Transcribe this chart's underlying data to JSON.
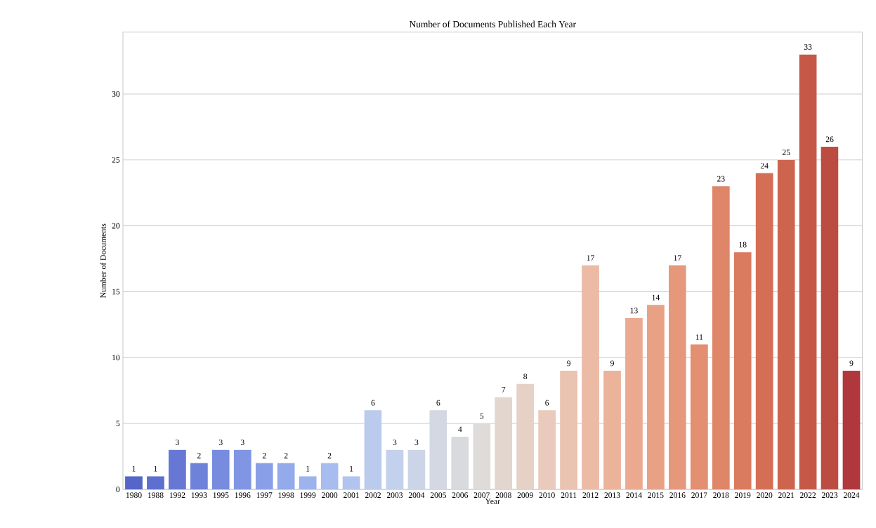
{
  "chart_data": {
    "type": "bar",
    "title": "Number of Documents Published Each Year",
    "xlabel": "Year",
    "ylabel": "Number of Documents",
    "categories": [
      "1980",
      "1988",
      "1992",
      "1993",
      "1995",
      "1996",
      "1997",
      "1998",
      "1999",
      "2000",
      "2001",
      "2002",
      "2003",
      "2004",
      "2005",
      "2006",
      "2007",
      "2008",
      "2009",
      "2010",
      "2011",
      "2012",
      "2013",
      "2014",
      "2015",
      "2016",
      "2017",
      "2018",
      "2019",
      "2020",
      "2021",
      "2022",
      "2023",
      "2024"
    ],
    "values": [
      1,
      1,
      3,
      2,
      3,
      3,
      2,
      2,
      1,
      2,
      1,
      6,
      3,
      3,
      6,
      4,
      5,
      7,
      8,
      6,
      9,
      17,
      9,
      13,
      14,
      17,
      11,
      23,
      18,
      24,
      25,
      33,
      26,
      9
    ],
    "colors": [
      "#5566c8",
      "#5d70cf",
      "#6678d4",
      "#6e82da",
      "#778cdf",
      "#8096e4",
      "#89a0e8",
      "#93aaeb",
      "#9db3ed",
      "#a7bcef",
      "#b1c4ef",
      "#bacbee",
      "#c3d1ec",
      "#ccd5e8",
      "#d3d8e3",
      "#d9dade",
      "#dedbd9",
      "#e2d6cf",
      "#e6d1c6",
      "#e9cabc",
      "#ebc3b1",
      "#ecbba6",
      "#ecb39b",
      "#ebaa90",
      "#e9a186",
      "#e6987c",
      "#e38f72",
      "#df8568",
      "#da7a5f",
      "#d46f56",
      "#cd644e",
      "#c55847",
      "#bc4c41",
      "#b0383c"
    ],
    "ylim": [
      0,
      34.7
    ],
    "yticks": [
      0,
      5,
      10,
      15,
      20,
      25,
      30
    ],
    "grid": "y",
    "data_labels": true
  }
}
